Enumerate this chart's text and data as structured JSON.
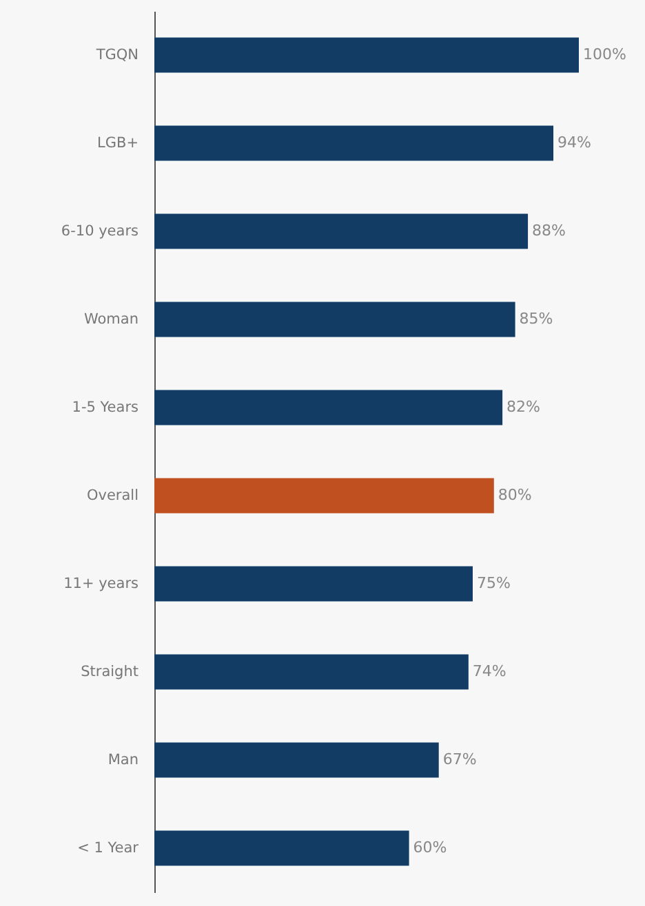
{
  "chart_data": {
    "type": "bar",
    "orientation": "horizontal",
    "categories": [
      "TGQN",
      "LGB+",
      "6-10 years",
      "Woman",
      "1-5 Years",
      "Overall",
      "11+ years",
      "Straight",
      "Man",
      "< 1 Year"
    ],
    "values": [
      100,
      94,
      88,
      85,
      82,
      80,
      75,
      74,
      67,
      60
    ],
    "colors": [
      "#123c64",
      "#123c64",
      "#123c64",
      "#123c64",
      "#123c64",
      "#c0501f",
      "#123c64",
      "#123c64",
      "#123c64",
      "#123c64"
    ],
    "value_labels": [
      "100%",
      "94%",
      "88%",
      "85%",
      "82%",
      "80%",
      "75%",
      "74%",
      "67%",
      "60%"
    ]
  }
}
